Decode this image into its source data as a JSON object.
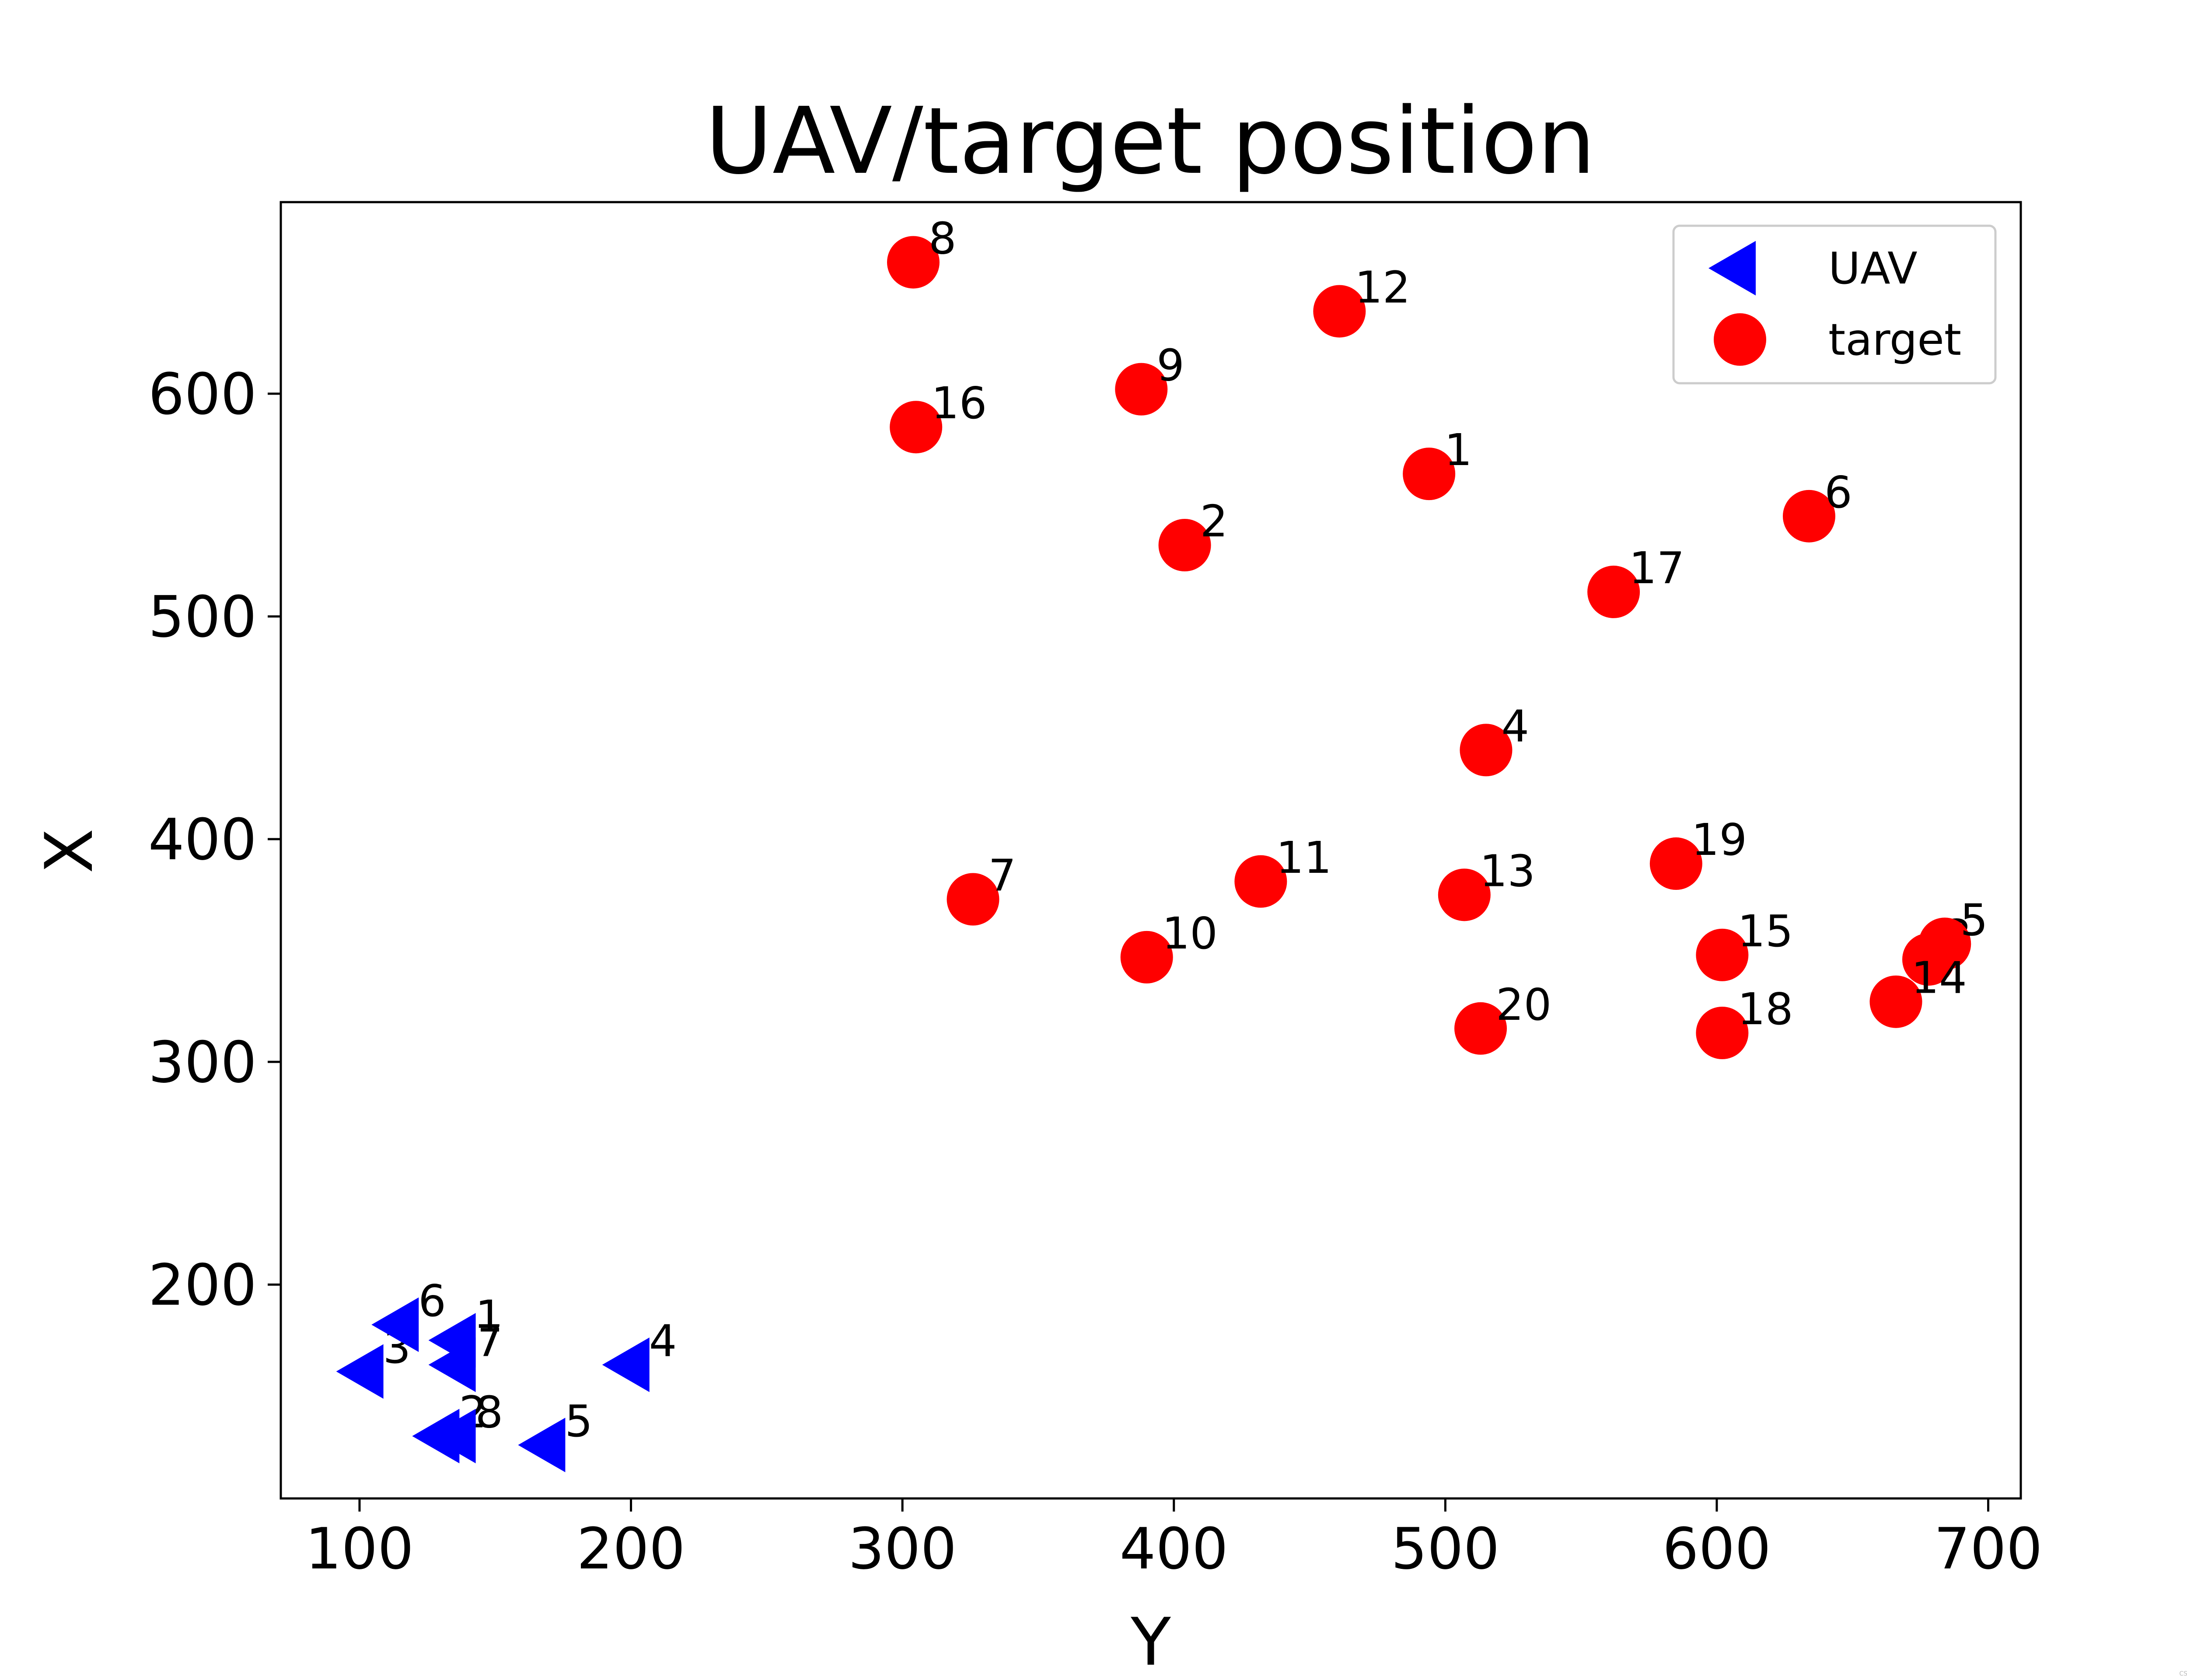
{
  "chart_data": {
    "type": "scatter",
    "title": "UAV/target position",
    "xlabel": "Y",
    "ylabel": "X",
    "xlim": [
      71,
      712
    ],
    "ylim": [
      104,
      686
    ],
    "xticks": [
      100,
      200,
      300,
      400,
      500,
      600,
      700
    ],
    "yticks": [
      200,
      300,
      400,
      500,
      600
    ],
    "grid": false,
    "legend_position": "top-right",
    "series": [
      {
        "name": "UAV",
        "marker": "triangle-left",
        "color": "#0000ff",
        "points": [
          {
            "label": "1",
            "x": 137,
            "y": 175
          },
          {
            "label": "2",
            "x": 131,
            "y": 132
          },
          {
            "label": "3",
            "x": 103,
            "y": 161
          },
          {
            "label": "4",
            "x": 201,
            "y": 164
          },
          {
            "label": "5",
            "x": 170,
            "y": 128
          },
          {
            "label": "6",
            "x": 116,
            "y": 182
          },
          {
            "label": "7",
            "x": 137,
            "y": 164
          },
          {
            "label": "8",
            "x": 137,
            "y": 132
          }
        ]
      },
      {
        "name": "target",
        "marker": "circle",
        "color": "#ff0000",
        "points": [
          {
            "label": "1",
            "x": 494,
            "y": 564
          },
          {
            "label": "2",
            "x": 404,
            "y": 532
          },
          {
            "label": "3",
            "x": 678,
            "y": 346
          },
          {
            "label": "4",
            "x": 515,
            "y": 440
          },
          {
            "label": "5",
            "x": 684,
            "y": 353
          },
          {
            "label": "6",
            "x": 634,
            "y": 545
          },
          {
            "label": "7",
            "x": 326,
            "y": 373
          },
          {
            "label": "8",
            "x": 304,
            "y": 659
          },
          {
            "label": "9",
            "x": 388,
            "y": 602
          },
          {
            "label": "10",
            "x": 390,
            "y": 347
          },
          {
            "label": "11",
            "x": 432,
            "y": 381
          },
          {
            "label": "12",
            "x": 461,
            "y": 637
          },
          {
            "label": "13",
            "x": 507,
            "y": 375
          },
          {
            "label": "14",
            "x": 666,
            "y": 327
          },
          {
            "label": "15",
            "x": 602,
            "y": 348
          },
          {
            "label": "16",
            "x": 305,
            "y": 585
          },
          {
            "label": "17",
            "x": 562,
            "y": 511
          },
          {
            "label": "18",
            "x": 602,
            "y": 313
          },
          {
            "label": "19",
            "x": 585,
            "y": 389
          },
          {
            "label": "20",
            "x": 513,
            "y": 315
          }
        ]
      }
    ]
  },
  "watermark": "CSDN @acuoling"
}
